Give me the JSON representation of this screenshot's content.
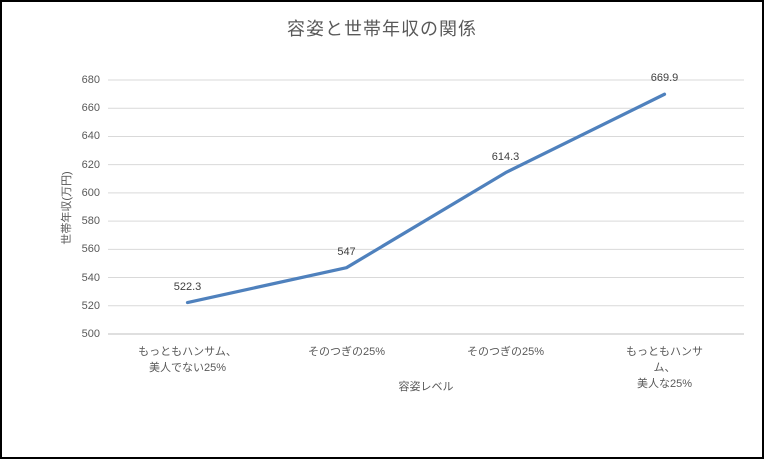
{
  "chart_data": {
    "type": "line",
    "title": "容姿と世帯年収の関係",
    "xlabel": "容姿レベル",
    "ylabel": "世帯年収(万円)",
    "categories": [
      "もっともハンサム、\n美人でない25%",
      "そのつぎの25%",
      "そのつぎの25%",
      "もっともハンサム、\n美人な25%"
    ],
    "values": [
      522.3,
      547,
      614.3,
      669.9
    ],
    "data_labels": [
      "522.3",
      "547",
      "614.3",
      "669.9"
    ],
    "ylim": [
      500,
      680
    ],
    "ytick_step": 20,
    "grid": true,
    "legend": "none",
    "colors": {
      "series_line": "#4F81BD",
      "gridline": "#D9D9D9",
      "axis_line": "#BFBFBF",
      "text": "#595959",
      "data_label_text": "#404040"
    }
  }
}
